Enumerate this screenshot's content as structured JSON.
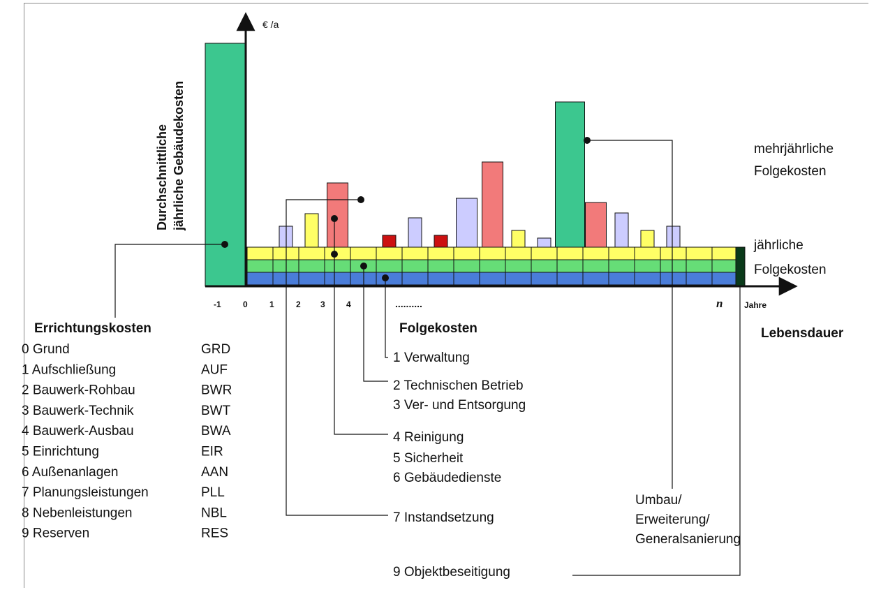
{
  "axis": {
    "y_unit": "€ /a",
    "y_label_line1": "Durchschnittliche",
    "y_label_line2": "jährliche Gebäudekosten",
    "x_unit": "Jahre",
    "x_ticks": [
      "-1",
      "0",
      "1",
      "2",
      "3",
      "4"
    ],
    "x_ellipsis": "..........",
    "x_last": "n",
    "lifetime_label": "Lebensdauer"
  },
  "errichtung": {
    "title": "Errichtungskosten",
    "items": [
      {
        "label": "0 Grund",
        "code": "GRD"
      },
      {
        "label": "1 Aufschließung",
        "code": "AUF"
      },
      {
        "label": "2 Bauwerk-Rohbau",
        "code": "BWR"
      },
      {
        "label": "3 Bauwerk-Technik",
        "code": "BWT"
      },
      {
        "label": "4 Bauwerk-Ausbau",
        "code": "BWA"
      },
      {
        "label": "5 Einrichtung",
        "code": "EIR"
      },
      {
        "label": "6 Außenanlagen",
        "code": "AAN"
      },
      {
        "label": "7 Planungsleistungen",
        "code": "PLL"
      },
      {
        "label": "8 Nebenleistungen",
        "code": "NBL"
      },
      {
        "label": "9 Reserven",
        "code": "RES"
      }
    ]
  },
  "folge": {
    "title": "Folgekosten",
    "items": [
      "1 Verwaltung",
      "2 Technischen Betrieb",
      "3 Ver- und Entsorgung",
      "4 Reinigung",
      "5 Sicherheit",
      "6 Gebäudedienste",
      "7 Instandsetzung",
      "9 Objektbeseitigung"
    ]
  },
  "umbau": [
    "Umbau/",
    "Erweiterung/",
    "Generalsanierung"
  ],
  "right_labels": {
    "mehrjaehrlich": [
      "mehrjährliche",
      "Folgekosten"
    ],
    "jaehrlich": [
      "jährliche",
      "Folgekosten"
    ]
  },
  "colors": {
    "construction": "#3cc78f",
    "band_yellow": "#ffff66",
    "band_green": "#66dd77",
    "band_blue": "#4a7dd9",
    "bar_yellow": "#ffff66",
    "bar_lavender": "#ccccff",
    "bar_salmon": "#f27a7a",
    "bar_red": "#cc1111",
    "bar_green": "#3cc78f",
    "end_marker": "#0a3a1a"
  },
  "periodic_bars": [
    {
      "year": 2,
      "height": 30,
      "color": "bar_lavender"
    },
    {
      "year": 3,
      "height": 48,
      "color": "bar_yellow"
    },
    {
      "year": 4,
      "height": 92,
      "color": "bar_salmon"
    },
    {
      "year": 6,
      "height": 17,
      "color": "bar_red"
    },
    {
      "year": 7,
      "height": 42,
      "color": "bar_lavender"
    },
    {
      "year": 8,
      "height": 17,
      "color": "bar_red"
    },
    {
      "year": 9,
      "height": 70,
      "color": "bar_lavender"
    },
    {
      "year": 10,
      "height": 122,
      "color": "bar_salmon"
    },
    {
      "year": 11,
      "height": 24,
      "color": "bar_yellow"
    },
    {
      "year": 12,
      "height": 13,
      "color": "bar_lavender"
    },
    {
      "year": 13,
      "height": 208,
      "color": "bar_green"
    },
    {
      "year": 14,
      "height": 64,
      "color": "bar_salmon"
    },
    {
      "year": 15,
      "height": 49,
      "color": "bar_lavender"
    },
    {
      "year": 16,
      "height": 24,
      "color": "bar_yellow"
    },
    {
      "year": 17,
      "height": 30,
      "color": "bar_lavender"
    }
  ]
}
